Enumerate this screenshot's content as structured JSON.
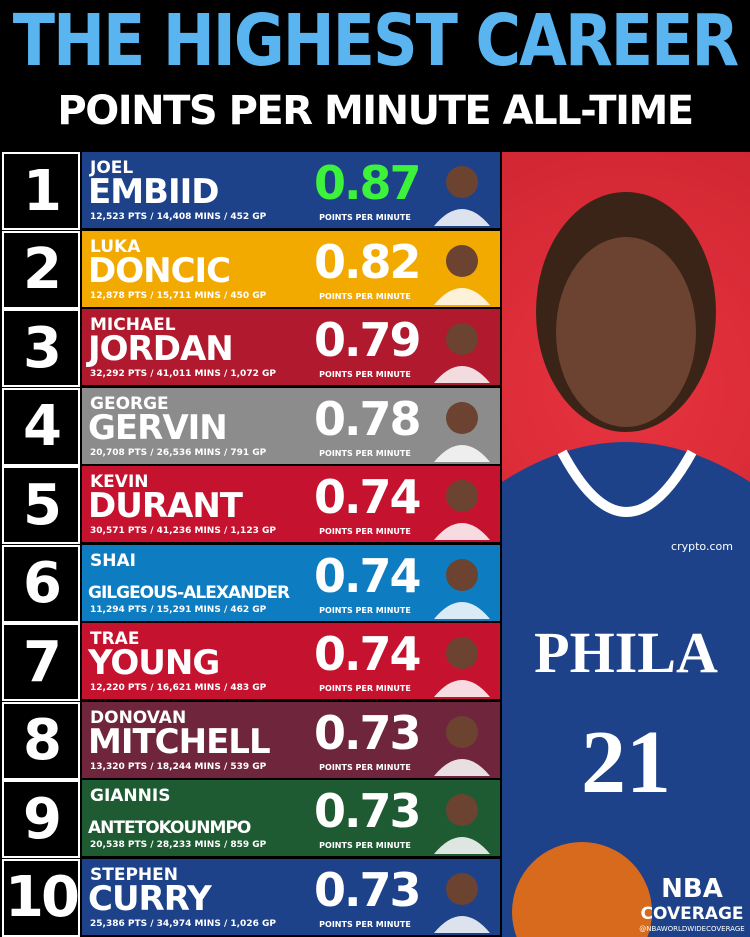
{
  "header": {
    "title": "THE HIGHEST CAREER",
    "subtitle": "POINTS PER MINUTE ALL-TIME"
  },
  "value_caption": "POINTS PER MINUTE",
  "rows": [
    {
      "rank": "1",
      "first_name": "JOEL",
      "last_name": "EMBIID",
      "stats": "12,523 PTS / 14,408 MINS / 452 GP",
      "value": "0.87",
      "color": "#1d428a",
      "value_color": "#3cf23a"
    },
    {
      "rank": "2",
      "first_name": "LUKA",
      "last_name": "DONCIC",
      "stats": "12,878 PTS / 15,711 MINS / 450 GP",
      "value": "0.82",
      "color": "#f2a900",
      "value_color": "#ffffff"
    },
    {
      "rank": "3",
      "first_name": "MICHAEL",
      "last_name": "JORDAN",
      "stats": "32,292 PTS / 41,011 MINS / 1,072 GP",
      "value": "0.79",
      "color": "#b0192e",
      "value_color": "#ffffff"
    },
    {
      "rank": "4",
      "first_name": "GEORGE",
      "last_name": "GERVIN",
      "stats": "20,708 PTS / 26,536 MINS / 791 GP",
      "value": "0.78",
      "color": "#8c8c8c",
      "value_color": "#ffffff"
    },
    {
      "rank": "5",
      "first_name": "KEVIN",
      "last_name": "DURANT",
      "stats": "30,571 PTS / 41,236 MINS / 1,123 GP",
      "value": "0.74",
      "color": "#c4122f",
      "value_color": "#ffffff"
    },
    {
      "rank": "6",
      "first_name": "SHAI",
      "last_name": "GILGEOUS-ALEXANDER",
      "stats": "11,294 PTS / 15,291 MINS / 462 GP",
      "value": "0.74",
      "color": "#0e7cc1",
      "value_color": "#ffffff"
    },
    {
      "rank": "7",
      "first_name": "TRAE",
      "last_name": "YOUNG",
      "stats": "12,220 PTS / 16,621 MINS / 483 GP",
      "value": "0.74",
      "color": "#c4122f",
      "value_color": "#ffffff"
    },
    {
      "rank": "8",
      "first_name": "DONOVAN",
      "last_name": "MITCHELL",
      "stats": "13,320 PTS / 18,244 MINS / 539 GP",
      "value": "0.73",
      "color": "#6f263d",
      "value_color": "#ffffff"
    },
    {
      "rank": "9",
      "first_name": "GIANNIS",
      "last_name": "ANTETOKOUNMPO",
      "stats": "20,538 PTS / 28,233 MINS / 859 GP",
      "value": "0.73",
      "color": "#1e5b33",
      "value_color": "#ffffff"
    },
    {
      "rank": "10",
      "first_name": "STEPHEN",
      "last_name": "CURRY",
      "stats": "25,386 PTS / 34,974 MINS / 1,026 GP",
      "value": "0.73",
      "color": "#1d428a",
      "value_color": "#ffffff"
    }
  ],
  "footer": {
    "brand_top": "NBA",
    "brand_bottom": "COVERAGE",
    "handle": "@NBAWORLDWIDECOVERAGE"
  },
  "photo": {
    "jersey": "PHILA",
    "number": "21",
    "sponsor": "crypto.com"
  }
}
